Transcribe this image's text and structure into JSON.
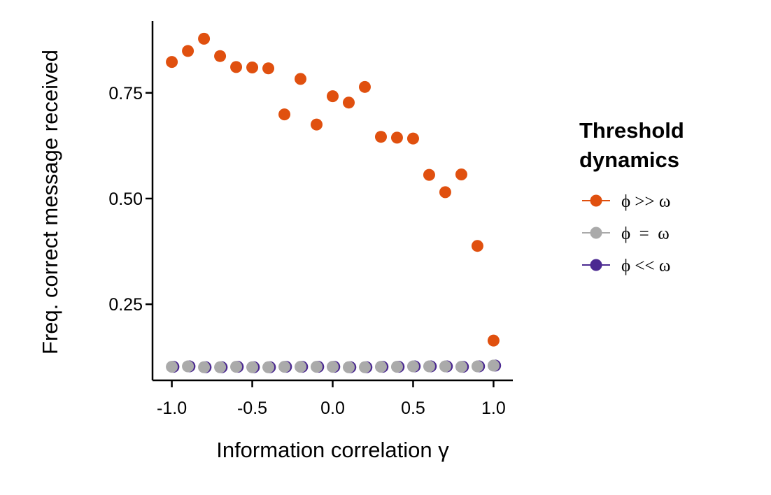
{
  "chart_data": {
    "type": "scatter",
    "xlabel": "Information correlation γ",
    "ylabel": "Freq. correct message received",
    "xlim": [
      -1.12,
      1.12
    ],
    "ylim": [
      0.07,
      0.92
    ],
    "x_ticks": [
      -1.0,
      -0.5,
      0.0,
      0.5,
      1.0
    ],
    "x_tick_labels": [
      "-1.0",
      "-0.5",
      "0.0",
      "0.5",
      "1.0"
    ],
    "y_ticks": [
      0.25,
      0.5,
      0.75
    ],
    "y_tick_labels": [
      "0.25",
      "0.50",
      "0.75"
    ],
    "grid": false,
    "legend": {
      "title_lines": [
        "Threshold",
        "dynamics"
      ],
      "placement": "right"
    },
    "series": [
      {
        "name": "ϕ << ω",
        "color": "#4B2991",
        "x": [
          -0.99,
          -0.89,
          -0.79,
          -0.69,
          -0.59,
          -0.49,
          -0.39,
          -0.29,
          -0.19,
          -0.09,
          0.01,
          0.11,
          0.21,
          0.31,
          0.41,
          0.51,
          0.61,
          0.71,
          0.81,
          0.91,
          1.01
        ],
        "y": [
          0.102,
          0.103,
          0.101,
          0.101,
          0.102,
          0.101,
          0.101,
          0.102,
          0.102,
          0.102,
          0.102,
          0.101,
          0.101,
          0.102,
          0.102,
          0.103,
          0.103,
          0.103,
          0.102,
          0.103,
          0.105
        ]
      },
      {
        "name": "ϕ  =  ω",
        "color": "#AAAAAA",
        "x": [
          -1.0,
          -0.9,
          -0.8,
          -0.7,
          -0.6,
          -0.5,
          -0.4,
          -0.3,
          -0.2,
          -0.1,
          0.0,
          0.1,
          0.2,
          0.3,
          0.4,
          0.5,
          0.6,
          0.7,
          0.8,
          0.9,
          1.0
        ],
        "y": [
          0.102,
          0.103,
          0.101,
          0.101,
          0.102,
          0.101,
          0.101,
          0.102,
          0.102,
          0.102,
          0.102,
          0.101,
          0.101,
          0.102,
          0.102,
          0.103,
          0.103,
          0.103,
          0.102,
          0.103,
          0.105
        ]
      },
      {
        "name": "ϕ >> ω",
        "color": "#E0500F",
        "x": [
          -1.0,
          -0.9,
          -0.8,
          -0.7,
          -0.6,
          -0.5,
          -0.4,
          -0.3,
          -0.2,
          -0.1,
          0.0,
          0.1,
          0.2,
          0.3,
          0.4,
          0.5,
          0.6,
          0.7,
          0.8,
          0.9,
          1.0
        ],
        "y": [
          0.823,
          0.849,
          0.878,
          0.837,
          0.811,
          0.81,
          0.808,
          0.699,
          0.783,
          0.675,
          0.742,
          0.727,
          0.764,
          0.646,
          0.644,
          0.642,
          0.556,
          0.515,
          0.557,
          0.388,
          0.164
        ]
      }
    ],
    "legend_order": [
      2,
      1,
      0
    ]
  }
}
